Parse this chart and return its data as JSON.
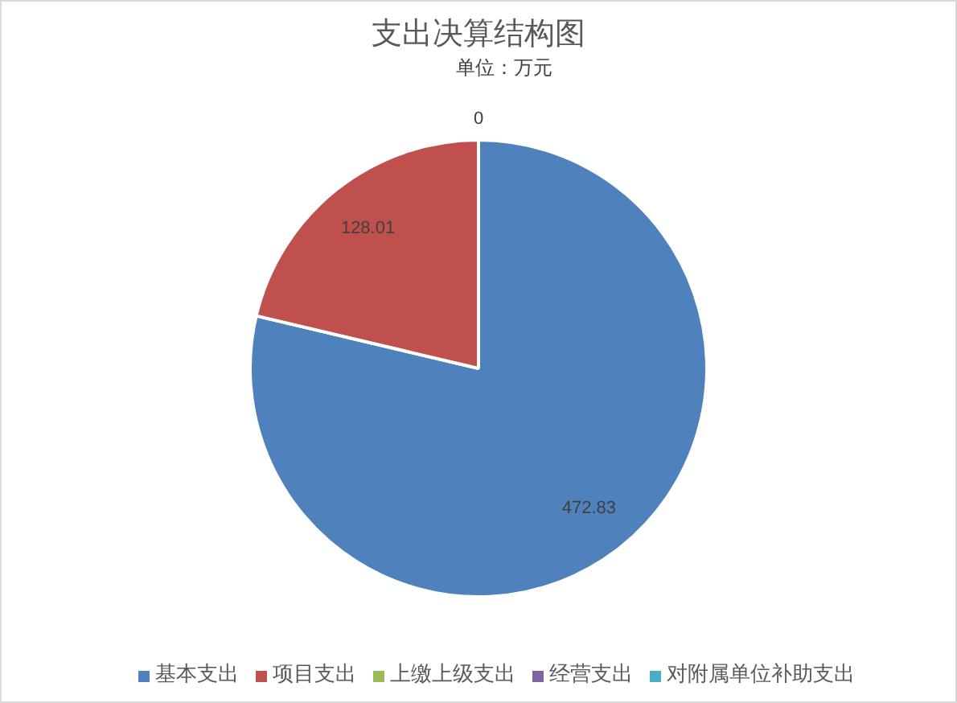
{
  "chart_data": {
    "type": "pie",
    "title": "支出决算结构图",
    "subtitle": "单位：万元",
    "categories": [
      "基本支出",
      "项目支出",
      "上缴上级支出",
      "经营支出",
      "对附属单位补助支出"
    ],
    "values": [
      472.83,
      128.01,
      0,
      0,
      0
    ],
    "colors": [
      "#4f81bd",
      "#c0504d",
      "#9bbb59",
      "#8064a2",
      "#4bacc6"
    ],
    "value_labels": [
      "472.83",
      "128.01",
      "0",
      null,
      null
    ],
    "legend": "bottom"
  }
}
